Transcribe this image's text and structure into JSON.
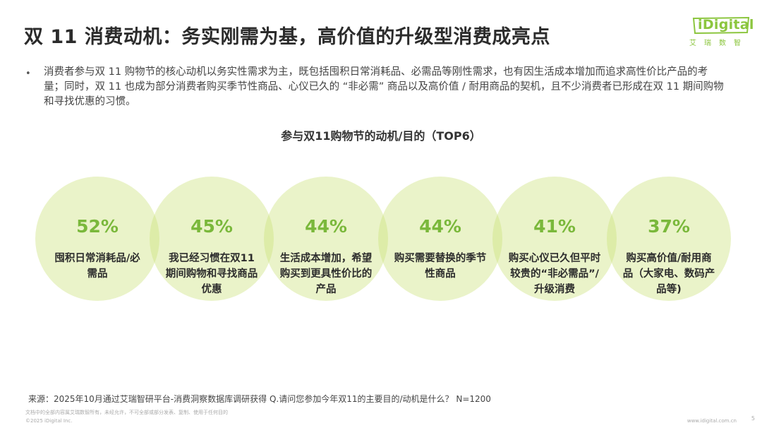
{
  "title": "双 11 消费动机：务实刚需为基，高价值的升级型消费成亮点",
  "logo": {
    "text": "iDigital",
    "sub": "艾瑞数智"
  },
  "bullet_symbol": "•",
  "intro": "消费者参与双 11 购物节的核心动机以务实性需求为主，既包括囤积日常消耗品、必需品等刚性需求，也有因生活成本增加而追求高性价比产品的考量；同时，双 11 也成为部分消费者购买季节性商品、心仪已久的 “非必需” 商品以及高价值 / 耐用商品的契机，且不少消费者已形成在双 11 期间购物和寻找优惠的习惯。",
  "colors": {
    "accent": "#7ab83b",
    "circle": "#cae278"
  },
  "chart_data": {
    "type": "bubble-row",
    "title": "参与双11购物节的动机/目的（TOP6）",
    "unit": "%",
    "categories": [
      "囤积日常消耗品/必需品",
      "我已经习惯在双11期间购物和寻找商品优惠",
      "生活成本增加，希望购买到更具性价比的产品",
      "购买需要替换的季节性商品",
      "购买心仪已久但平时较贵的“非必需品”/升级消费",
      "购买高价值/耐用商品（大家电、数码产品等)"
    ],
    "values": [
      52,
      45,
      44,
      44,
      41,
      37
    ],
    "labels": [
      "52%",
      "45%",
      "44%",
      "44%",
      "41%",
      "37%"
    ]
  },
  "footer": {
    "source": "来源：2025年10月通过艾瑞智研平台-消费洞察数据库调研获得 Q.请问您参加今年双11的主要目的/动机是什么？ N=1200",
    "disclaimer": "文档中的全部内容属艾瑞数智所有，未经允许，不可全部或部分发表、复制、使用于任何目的",
    "copyright": "©2025 iDigital Inc.",
    "site": "www.idigital.com.cn",
    "page": "5"
  }
}
